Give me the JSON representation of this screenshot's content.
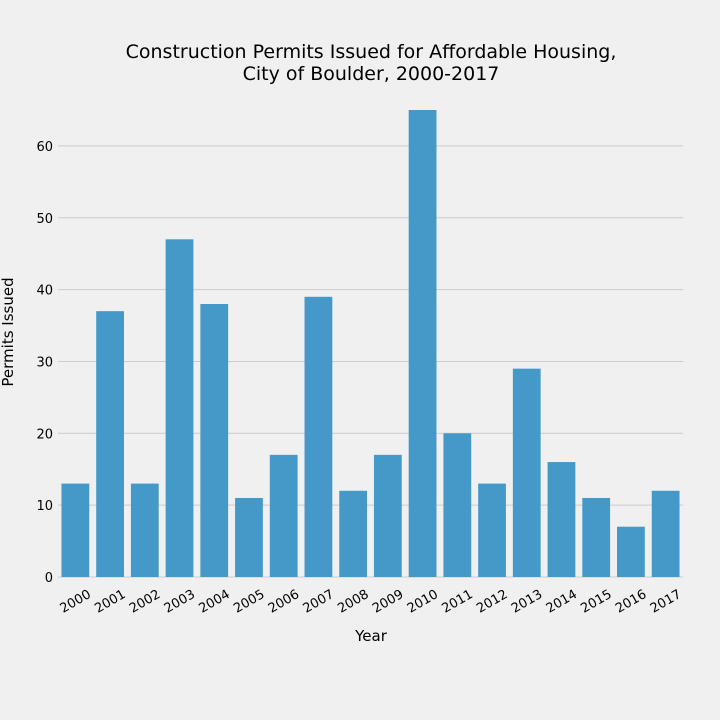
{
  "chart_data": {
    "type": "bar",
    "title_lines": [
      "Construction Permits Issued for Affordable Housing,",
      "City of Boulder, 2000-2017"
    ],
    "xlabel": "Year",
    "ylabel": "Permits Issued",
    "categories": [
      "2000",
      "2001",
      "2002",
      "2003",
      "2004",
      "2005",
      "2006",
      "2007",
      "2008",
      "2009",
      "2010",
      "2011",
      "2012",
      "2013",
      "2014",
      "2015",
      "2016",
      "2017"
    ],
    "values": [
      13,
      37,
      13,
      47,
      38,
      11,
      17,
      39,
      12,
      17,
      65,
      20,
      13,
      29,
      16,
      11,
      7,
      12
    ],
    "ylim": [
      0,
      65
    ],
    "yticks": [
      0,
      10,
      20,
      30,
      40,
      50,
      60
    ],
    "grid": true,
    "bar_color": "#4499c8",
    "background_color": "#f0f0f0",
    "grid_color": "#cbcbcb"
  }
}
